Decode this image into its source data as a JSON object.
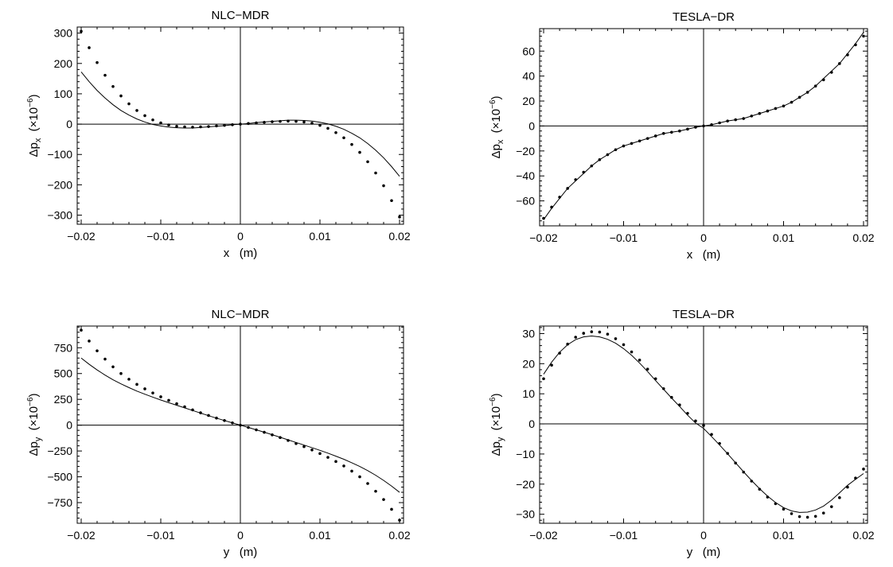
{
  "chart_data": [
    {
      "type": "scatter",
      "title": "NLC−MDR",
      "xlabel": "x   (m)",
      "ylabel_symbol": "Δp",
      "ylabel_sub": "x",
      "ylabel_unit": "  (×10",
      "ylabel_exp": "−6",
      "ylabel_close": ")",
      "xlim": [
        -0.0205,
        0.0205
      ],
      "ylim": [
        -330,
        320
      ],
      "xticks": [
        -0.02,
        -0.01,
        0,
        0.01,
        0.02
      ],
      "xtick_labels": [
        "−0.02",
        "−0.01",
        "0",
        "0.01",
        "0.02"
      ],
      "yticks": [
        -300,
        -200,
        -100,
        0,
        100,
        200,
        300
      ],
      "ytick_labels": [
        "−300",
        "−200",
        "−100",
        "0",
        "100",
        "200",
        "300"
      ],
      "series": [
        {
          "kind": "points",
          "x": [
            -0.02,
            -0.019,
            -0.018,
            -0.017,
            -0.016,
            -0.015,
            -0.014,
            -0.013,
            -0.012,
            -0.011,
            -0.01,
            -0.009,
            -0.008,
            -0.007,
            -0.006,
            -0.005,
            -0.004,
            -0.003,
            -0.002,
            -0.001,
            0,
            0.001,
            0.002,
            0.003,
            0.004,
            0.005,
            0.006,
            0.007,
            0.008,
            0.009,
            0.01,
            0.011,
            0.012,
            0.013,
            0.014,
            0.015,
            0.016,
            0.017,
            0.018,
            0.019,
            0.02
          ],
          "y": [
            306,
            252,
            203,
            161,
            124,
            93,
            67,
            45,
            28,
            14,
            4,
            -3,
            -7,
            -9,
            -10,
            -9,
            -8,
            -6,
            -4,
            -2,
            0,
            2,
            4,
            6,
            8,
            9,
            10,
            9,
            7,
            3,
            -4,
            -14,
            -28,
            -45,
            -67,
            -93,
            -124,
            -161,
            -203,
            -252,
            -306
          ]
        },
        {
          "kind": "line",
          "x": [
            -0.02,
            -0.019,
            -0.018,
            -0.017,
            -0.016,
            -0.015,
            -0.014,
            -0.013,
            -0.012,
            -0.011,
            -0.01,
            -0.009,
            -0.008,
            -0.007,
            -0.006,
            -0.005,
            -0.004,
            -0.003,
            -0.002,
            -0.001,
            0,
            0.001,
            0.002,
            0.003,
            0.004,
            0.005,
            0.006,
            0.007,
            0.008,
            0.009,
            0.01,
            0.011,
            0.012,
            0.013,
            0.014,
            0.015,
            0.016,
            0.017,
            0.018,
            0.019,
            0.02
          ],
          "y": [
            172,
            140,
            111,
            86,
            64,
            45,
            30,
            17,
            7,
            -1,
            -6,
            -10,
            -12,
            -13,
            -13,
            -11,
            -9,
            -7,
            -5,
            -2,
            0,
            2,
            5,
            7,
            9,
            11,
            13,
            13,
            12,
            10,
            6,
            1,
            -7,
            -17,
            -30,
            -45,
            -64,
            -86,
            -111,
            -140,
            -172
          ]
        }
      ]
    },
    {
      "type": "scatter",
      "title": "TESLA−DR",
      "xlabel": "x   (m)",
      "ylabel_symbol": "Δp",
      "ylabel_sub": "x",
      "ylabel_unit": "  (×10",
      "ylabel_exp": "−6",
      "ylabel_close": ")",
      "xlim": [
        -0.0205,
        0.0205
      ],
      "ylim": [
        -80,
        78
      ],
      "xticks": [
        -0.02,
        -0.01,
        0,
        0.01,
        0.02
      ],
      "xtick_labels": [
        "−0.02",
        "−0.01",
        "0",
        "0.01",
        "0.02"
      ],
      "yticks": [
        -60,
        -40,
        -20,
        0,
        20,
        40,
        60
      ],
      "ytick_labels": [
        "−60",
        "−40",
        "−20",
        "0",
        "20",
        "40",
        "60"
      ],
      "series": [
        {
          "kind": "points",
          "x": [
            -0.02,
            -0.019,
            -0.018,
            -0.017,
            -0.016,
            -0.015,
            -0.014,
            -0.013,
            -0.012,
            -0.011,
            -0.01,
            -0.009,
            -0.008,
            -0.007,
            -0.006,
            -0.005,
            -0.004,
            -0.003,
            -0.002,
            -0.001,
            0,
            0.001,
            0.002,
            0.003,
            0.004,
            0.005,
            0.006,
            0.007,
            0.008,
            0.009,
            0.01,
            0.011,
            0.012,
            0.013,
            0.014,
            0.015,
            0.016,
            0.017,
            0.018,
            0.019,
            0.02
          ],
          "y": [
            -74,
            -65,
            -57,
            -50,
            -43,
            -37,
            -32,
            -27,
            -23,
            -19,
            -16,
            -14,
            -12,
            -10,
            -8,
            -6,
            -5,
            -4,
            -2.5,
            -1,
            0,
            1,
            2.5,
            4,
            5,
            6,
            8,
            10,
            12,
            14,
            16,
            19,
            23,
            27,
            32,
            37,
            43,
            50,
            57,
            65,
            72
          ]
        },
        {
          "kind": "line",
          "x": [
            -0.02,
            -0.019,
            -0.018,
            -0.017,
            -0.016,
            -0.015,
            -0.014,
            -0.013,
            -0.012,
            -0.011,
            -0.01,
            -0.009,
            -0.008,
            -0.007,
            -0.006,
            -0.005,
            -0.004,
            -0.003,
            -0.002,
            -0.001,
            0,
            0.001,
            0.002,
            0.003,
            0.004,
            0.005,
            0.006,
            0.007,
            0.008,
            0.009,
            0.01,
            0.011,
            0.012,
            0.013,
            0.014,
            0.015,
            0.016,
            0.017,
            0.018,
            0.019,
            0.02
          ],
          "y": [
            -75,
            -66,
            -58,
            -50,
            -44,
            -38,
            -32,
            -27,
            -23,
            -19,
            -16,
            -14,
            -12,
            -10,
            -8,
            -6,
            -5,
            -4,
            -2.5,
            -1,
            0,
            1,
            2.5,
            4,
            5,
            6,
            8,
            10,
            12,
            14,
            16,
            19,
            23,
            27,
            32,
            38,
            44,
            50,
            58,
            66,
            75
          ]
        }
      ]
    },
    {
      "type": "scatter",
      "title": "NLC−MDR",
      "xlabel": "y   (m)",
      "ylabel_symbol": "Δp",
      "ylabel_sub": "y",
      "ylabel_unit": "  (×10",
      "ylabel_exp": "−6",
      "ylabel_close": ")",
      "xlim": [
        -0.0205,
        0.0205
      ],
      "ylim": [
        -950,
        960
      ],
      "xticks": [
        -0.02,
        -0.01,
        0,
        0.01,
        0.02
      ],
      "xtick_labels": [
        "−0.02",
        "−0.01",
        "0",
        "0.01",
        "0.02"
      ],
      "yticks": [
        -750,
        -500,
        -250,
        0,
        250,
        500,
        750
      ],
      "ytick_labels": [
        "−750",
        "−500",
        "−250",
        "0",
        "250",
        "500",
        "750"
      ],
      "series": [
        {
          "kind": "points",
          "x": [
            -0.02,
            -0.019,
            -0.018,
            -0.017,
            -0.016,
            -0.015,
            -0.014,
            -0.013,
            -0.012,
            -0.011,
            -0.01,
            -0.009,
            -0.008,
            -0.007,
            -0.006,
            -0.005,
            -0.004,
            -0.003,
            -0.002,
            -0.001,
            0,
            0.001,
            0.002,
            0.003,
            0.004,
            0.005,
            0.006,
            0.007,
            0.008,
            0.009,
            0.01,
            0.011,
            0.012,
            0.013,
            0.014,
            0.015,
            0.016,
            0.017,
            0.018,
            0.019,
            0.02
          ],
          "y": [
            920,
            815,
            720,
            640,
            565,
            500,
            445,
            395,
            352,
            312,
            275,
            240,
            208,
            178,
            148,
            120,
            94,
            69,
            45,
            22,
            0,
            -22,
            -45,
            -69,
            -94,
            -120,
            -148,
            -178,
            -208,
            -240,
            -275,
            -312,
            -352,
            -395,
            -445,
            -500,
            -565,
            -640,
            -720,
            -815,
            -920
          ]
        },
        {
          "kind": "line",
          "x": [
            -0.02,
            -0.019,
            -0.018,
            -0.017,
            -0.016,
            -0.015,
            -0.014,
            -0.013,
            -0.012,
            -0.011,
            -0.01,
            -0.009,
            -0.008,
            -0.007,
            -0.006,
            -0.005,
            -0.004,
            -0.003,
            -0.002,
            -0.001,
            0,
            0.001,
            0.002,
            0.003,
            0.004,
            0.005,
            0.006,
            0.007,
            0.008,
            0.009,
            0.01,
            0.011,
            0.012,
            0.013,
            0.014,
            0.015,
            0.016,
            0.017,
            0.018,
            0.019,
            0.02
          ],
          "y": [
            650,
            590,
            535,
            485,
            440,
            400,
            364,
            330,
            300,
            271,
            244,
            218,
            193,
            168,
            142,
            117,
            92,
            68,
            45,
            22,
            0,
            -22,
            -45,
            -68,
            -92,
            -117,
            -142,
            -168,
            -193,
            -218,
            -244,
            -271,
            -300,
            -330,
            -364,
            -400,
            -440,
            -485,
            -535,
            -590,
            -650
          ]
        }
      ]
    },
    {
      "type": "scatter",
      "title": "TESLA−DR",
      "xlabel": "y   (m)",
      "ylabel_symbol": "Δp",
      "ylabel_sub": "y",
      "ylabel_unit": "  (×10",
      "ylabel_exp": "−6",
      "ylabel_close": ")",
      "xlim": [
        -0.0205,
        0.0205
      ],
      "ylim": [
        -33,
        32.5
      ],
      "xticks": [
        -0.02,
        -0.01,
        0,
        0.01,
        0.02
      ],
      "xtick_labels": [
        "−0.02",
        "−0.01",
        "0",
        "0.01",
        "0.02"
      ],
      "yticks": [
        -30,
        -20,
        -10,
        0,
        10,
        20,
        30
      ],
      "ytick_labels": [
        "−30",
        "−20",
        "−10",
        "0",
        "10",
        "20",
        "30"
      ],
      "series": [
        {
          "kind": "points",
          "x": [
            -0.02,
            -0.019,
            -0.018,
            -0.017,
            -0.016,
            -0.015,
            -0.014,
            -0.013,
            -0.012,
            -0.011,
            -0.01,
            -0.009,
            -0.008,
            -0.007,
            -0.006,
            -0.005,
            -0.004,
            -0.003,
            -0.002,
            -0.001,
            0,
            0.001,
            0.002,
            0.003,
            0.004,
            0.005,
            0.006,
            0.007,
            0.008,
            0.009,
            0.01,
            0.011,
            0.012,
            0.013,
            0.014,
            0.015,
            0.016,
            0.017,
            0.018,
            0.019,
            0.02
          ],
          "y": [
            15,
            19.5,
            23.5,
            26.5,
            28.8,
            30.1,
            30.6,
            30.5,
            29.8,
            28.3,
            26.3,
            23.9,
            21.2,
            18.2,
            15.0,
            11.7,
            8.8,
            6.3,
            3.5,
            1,
            -0.5,
            -3.5,
            -6.5,
            -9.8,
            -13,
            -16,
            -19,
            -21.7,
            -24.3,
            -26.5,
            -28.3,
            -29.8,
            -30.8,
            -31.0,
            -30.7,
            -29.6,
            -27.5,
            -24.5,
            -21.0,
            -18.0,
            -15
          ]
        },
        {
          "kind": "line",
          "x": [
            -0.02,
            -0.019,
            -0.018,
            -0.017,
            -0.016,
            -0.015,
            -0.014,
            -0.013,
            -0.012,
            -0.011,
            -0.01,
            -0.009,
            -0.008,
            -0.007,
            -0.006,
            -0.005,
            -0.004,
            -0.003,
            -0.002,
            -0.001,
            0,
            0.001,
            0.002,
            0.003,
            0.004,
            0.005,
            0.006,
            0.007,
            0.008,
            0.009,
            0.01,
            0.011,
            0.012,
            0.013,
            0.014,
            0.015,
            0.016,
            0.017,
            0.018,
            0.019,
            0.02
          ],
          "y": [
            16.5,
            20.5,
            23.8,
            26.3,
            28.0,
            28.9,
            29.2,
            28.9,
            28.1,
            26.8,
            25.0,
            22.8,
            20.2,
            17.4,
            14.4,
            11.5,
            8.6,
            5.8,
            2.9,
            0.3,
            -1.5,
            -4.2,
            -7.0,
            -9.9,
            -12.9,
            -15.9,
            -18.8,
            -21.5,
            -24.0,
            -26.1,
            -27.8,
            -28.9,
            -29.4,
            -29.3,
            -28.6,
            -27.3,
            -25.3,
            -22.9,
            -20.4,
            -18.4,
            -16.5
          ]
        }
      ]
    }
  ]
}
